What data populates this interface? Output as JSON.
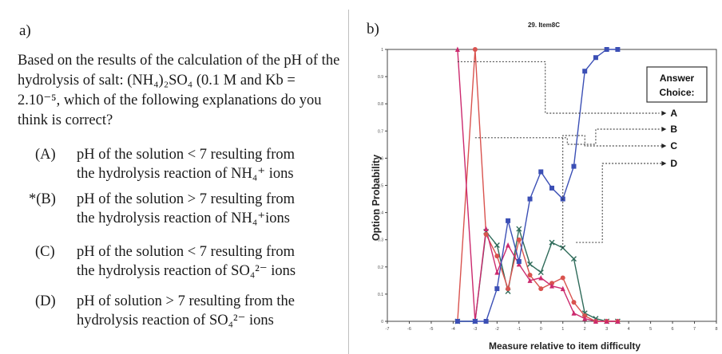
{
  "panel_a": {
    "label": "a)",
    "question": "Based on the results of the calculation of the pH of the hydrolysis of salt: (NH₄)₂SO₄ (0.1 M and Kb = 2.10⁻⁵, which of the following explanations do you think is correct?",
    "options": [
      {
        "key": "(A)",
        "line1": "pH of the solution < 7 resulting from",
        "line2": "the hydrolysis reaction of NH₄⁺ ions"
      },
      {
        "key": "*(B)",
        "line1": "pH of the solution > 7 resulting from",
        "line2": "the hydrolysis reaction of NH₄⁺ions"
      },
      {
        "key": "(C)",
        "line1": "pH of the solution < 7 resulting from",
        "line2": "the hydrolysis reaction of SO₄²⁻ ions"
      },
      {
        "key": "(D)",
        "line1": "pH of solution > 7 resulting from the",
        "line2": "hydrolysis reaction of  SO₄²⁻ ions"
      }
    ]
  },
  "panel_b": {
    "label": "b)"
  },
  "chart_data": {
    "type": "line",
    "title": "29. Item8C",
    "xlabel": "Measure relative to item difficulty",
    "ylabel": "Option Probability",
    "xlim": [
      -7,
      8
    ],
    "ylim": [
      0,
      1
    ],
    "x_ticks": [
      "-7",
      "-6",
      "-5",
      "-4",
      "-3",
      "-2",
      "-1",
      "0",
      "1",
      "2",
      "3",
      "4",
      "5",
      "6",
      "7",
      "8"
    ],
    "y_ticks": [
      "0",
      "0.1",
      "0.2",
      "0.3",
      "0.4",
      "0.5",
      "0.6",
      "0.7",
      "0.8",
      "0.9",
      "1"
    ],
    "legend": {
      "title_line1": "Answer",
      "title_line2": "Choice:",
      "placement": "right"
    },
    "x": [
      -3.8,
      -3.0,
      -2.5,
      -2.0,
      -1.5,
      -1.0,
      -0.5,
      0.0,
      0.5,
      1.0,
      1.5,
      2.0,
      2.5,
      3.0,
      3.5
    ],
    "series": [
      {
        "name": "A",
        "color": "#cc2a6e",
        "marker": "triangle",
        "values": [
          1.0,
          0.0,
          0.34,
          0.18,
          0.28,
          0.21,
          0.15,
          0.16,
          0.13,
          0.12,
          0.03,
          0.01,
          0.0,
          0.0,
          0.0
        ]
      },
      {
        "name": "B",
        "color": "#3b4fb5",
        "marker": "square",
        "values": [
          0.0,
          0.0,
          0.0,
          0.12,
          0.37,
          0.22,
          0.45,
          0.55,
          0.49,
          0.45,
          0.57,
          0.92,
          0.97,
          1.0,
          1.0
        ]
      },
      {
        "name": "C",
        "color": "#2f6b5a",
        "marker": "x",
        "values": [
          0.0,
          0.0,
          0.33,
          0.28,
          0.11,
          0.34,
          0.21,
          0.18,
          0.29,
          0.27,
          0.23,
          0.03,
          0.01,
          0.0,
          0.0
        ]
      },
      {
        "name": "D",
        "color": "#d9534f",
        "marker": "circle",
        "values": [
          0.0,
          1.0,
          0.32,
          0.24,
          0.12,
          0.3,
          0.17,
          0.12,
          0.14,
          0.16,
          0.07,
          0.02,
          0.0,
          0.0,
          0.0
        ]
      }
    ]
  }
}
